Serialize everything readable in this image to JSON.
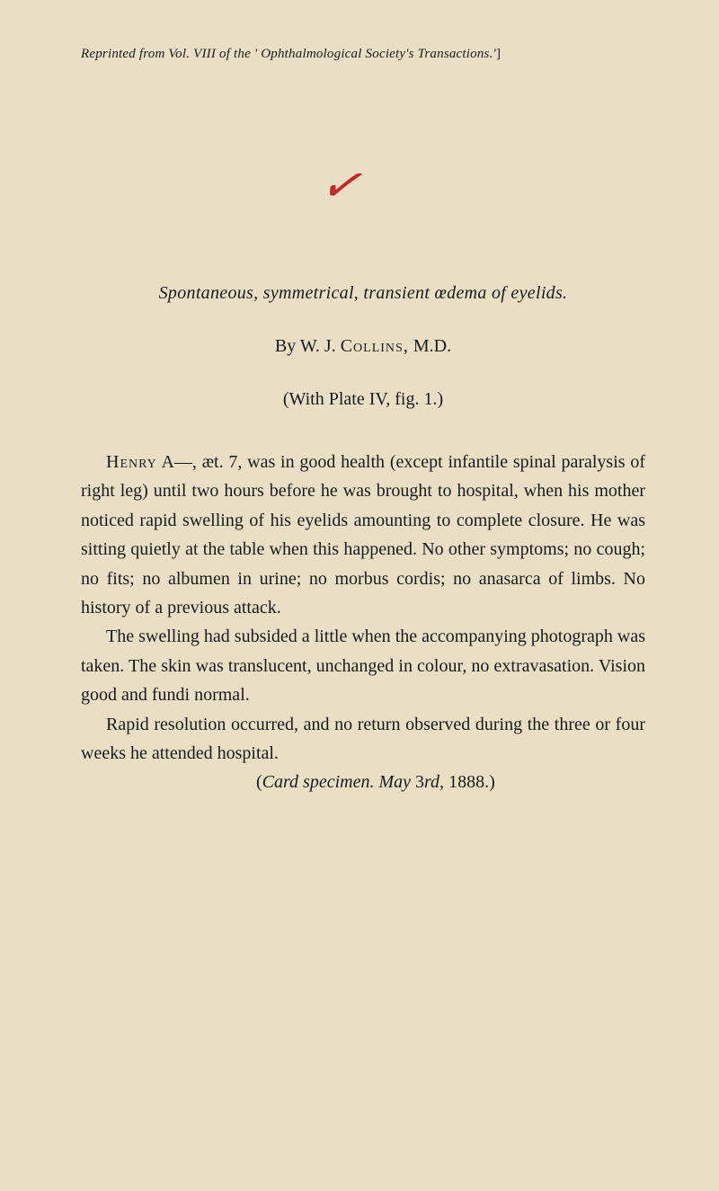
{
  "header": {
    "prefix": "Reprinted from Vol. VIII of the ' Ophthalmological Society's Transactions.'",
    "suffix": "]"
  },
  "checkmark": "✓",
  "title": "Spontaneous, symmetrical, transient œdema of eyelids.",
  "author": {
    "prefix": "By W. J. ",
    "name": "Collins,",
    "suffix": " M.D."
  },
  "plate_ref": "(With Plate IV, fig. 1.)",
  "paragraphs": {
    "p1_name": "Henry",
    "p1_rest": " A—, æt. 7, was in good health (except infantile spinal paralysis of right leg) until two hours before he was brought to hospital, when his mother noticed rapid swelling of his eyelids amounting to complete closure. He was sitting quietly at the table when this happened. No other symptoms; no cough; no fits; no albumen in urine; no morbus cordis; no anasarca of limbs. No history of a previous attack.",
    "p2": "The swelling had subsided a little when the accompanying photograph was taken. The skin was translucent, unchanged in colour, no extravasation. Vision good and fundi normal.",
    "p3": "Rapid resolution occurred, and no return observed during the three or four weeks he attended hospital.",
    "citation_open": "(",
    "citation_italic1": "Card specimen.",
    "citation_spacer": "   ",
    "citation_italic2": "May ",
    "citation_num": "3",
    "citation_italic3": "rd,",
    "citation_year": " 1888.)"
  },
  "colors": {
    "background": "#e8dfc4",
    "text": "#1a1a1a",
    "checkmark": "#c9252b"
  },
  "typography": {
    "body_fontsize": 20,
    "header_fontsize": 15,
    "line_height": 1.62
  }
}
